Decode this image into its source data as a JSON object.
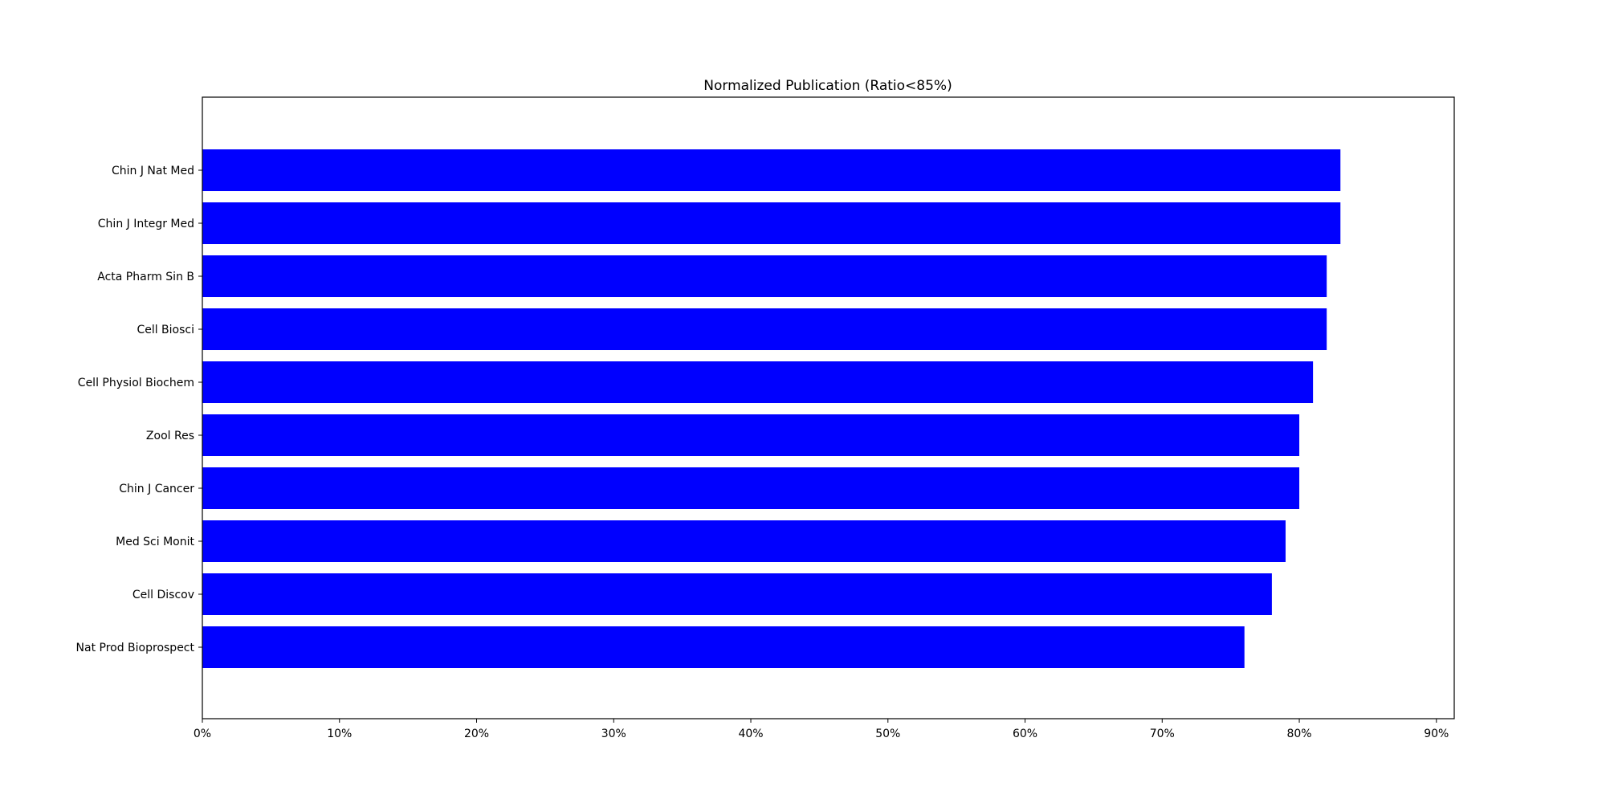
{
  "chart_data": {
    "type": "bar",
    "orientation": "horizontal",
    "title": "Normalized Publication (Ratio<85%)",
    "xlabel": "",
    "ylabel": "",
    "categories": [
      "Chin J Nat Med",
      "Chin J Integr Med",
      "Acta Pharm Sin B",
      "Cell Biosci",
      "Cell Physiol Biochem",
      "Zool Res",
      "Chin J Cancer",
      "Med Sci Monit",
      "Cell Discov",
      "Nat Prod Bioprospect"
    ],
    "values": [
      83,
      83,
      82,
      82,
      81,
      80,
      80,
      79,
      78,
      76
    ],
    "value_unit": "%",
    "xlim": [
      0,
      91.3
    ],
    "xticks": [
      "0%",
      "10%",
      "20%",
      "30%",
      "40%",
      "50%",
      "60%",
      "70%",
      "80%",
      "90%"
    ],
    "grid": false,
    "legend": "none",
    "bar_color": "#0000ff"
  }
}
